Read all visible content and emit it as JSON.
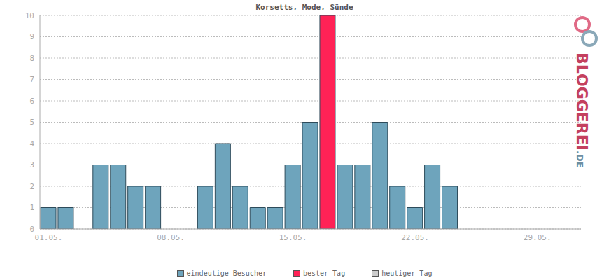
{
  "chart_data": {
    "type": "bar",
    "title": "Korsetts, Mode, Sünde",
    "categories": [
      "01.05.",
      null,
      null,
      null,
      null,
      null,
      null,
      "08.05.",
      null,
      null,
      null,
      null,
      null,
      null,
      "15.05.",
      null,
      null,
      null,
      null,
      null,
      null,
      "22.05.",
      null,
      null,
      null,
      null,
      null,
      null,
      "29.05.",
      null,
      null
    ],
    "series": [
      {
        "name": "eindeutige Besucher",
        "color": "#6ea4bc",
        "values": [
          1,
          1,
          0,
          3,
          3,
          2,
          2,
          0,
          0,
          2,
          4,
          2,
          1,
          1,
          3,
          5,
          null,
          3,
          3,
          5,
          2,
          1,
          3,
          2,
          0,
          0,
          0,
          0,
          0,
          0,
          0
        ]
      },
      {
        "name": "bester Tag",
        "color": "#ff2256",
        "values": [
          null,
          null,
          null,
          null,
          null,
          null,
          null,
          null,
          null,
          null,
          null,
          null,
          null,
          null,
          null,
          null,
          10,
          null,
          null,
          null,
          null,
          null,
          null,
          null,
          null,
          null,
          null,
          null,
          null,
          null,
          null
        ]
      },
      {
        "name": "heutiger Tag",
        "color": "#cccccc",
        "values": [
          null,
          null,
          null,
          null,
          null,
          null,
          null,
          null,
          null,
          null,
          null,
          null,
          null,
          null,
          null,
          null,
          null,
          null,
          null,
          null,
          null,
          null,
          null,
          null,
          null,
          null,
          null,
          null,
          null,
          null,
          null
        ]
      }
    ],
    "ylim": [
      0,
      10
    ],
    "yticks": [
      0,
      1,
      2,
      3,
      4,
      5,
      6,
      7,
      8,
      9,
      10
    ],
    "grid": true,
    "legend": "bottom",
    "annotations": [
      "BLOGGEREI.DE"
    ]
  }
}
